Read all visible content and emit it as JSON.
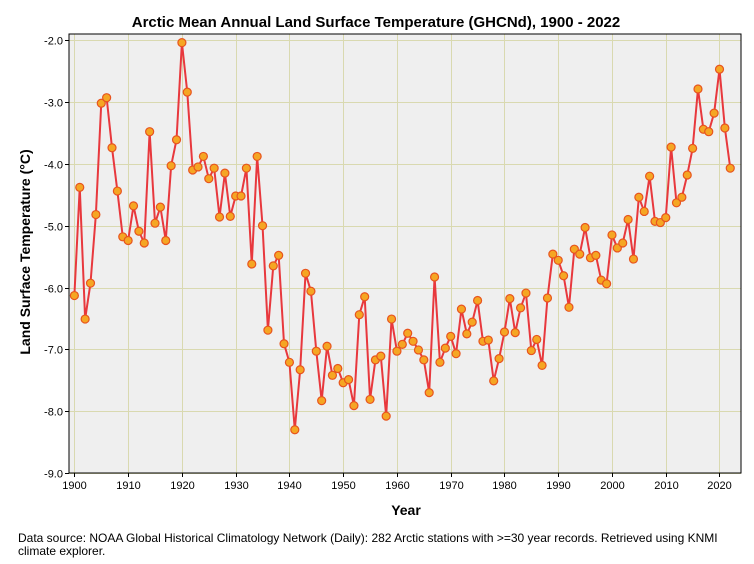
{
  "chart_data": {
    "type": "line",
    "title": "Arctic Mean Annual Land Surface Temperature (GHCNd), 1900 - 2022",
    "xlabel": "Year",
    "ylabel": "Land Surface Temperature (°C)",
    "xlim": [
      1899,
      2024
    ],
    "ylim": [
      -9.0,
      -1.9
    ],
    "xticks": [
      1900,
      1910,
      1920,
      1930,
      1940,
      1950,
      1960,
      1970,
      1980,
      1990,
      2000,
      2010,
      2020
    ],
    "xtick_labels": [
      "1900",
      "1910",
      "1920",
      "1930",
      "1940",
      "1950",
      "1960",
      "1970",
      "1980",
      "1990",
      "2000",
      "2010",
      "2020"
    ],
    "yticks": [
      -9.0,
      -8.0,
      -7.0,
      -6.0,
      -5.0,
      -4.0,
      -3.0,
      -2.0
    ],
    "ytick_labels": [
      "-9.0",
      "-8.0",
      "-7.0",
      "-6.0",
      "-5.0",
      "-4.0",
      "-3.0",
      "-2.0"
    ],
    "grid": true,
    "colors": {
      "line": "#e8383d",
      "marker_fill": "#f5a623",
      "marker_edge": "#e8541e",
      "plot_bg": "#efefef",
      "grid": "#d9d9b0"
    },
    "series": [
      {
        "name": "Arctic mean annual land surface temperature",
        "x": [
          1900,
          1901,
          1902,
          1903,
          1904,
          1905,
          1906,
          1907,
          1908,
          1909,
          1910,
          1911,
          1912,
          1913,
          1914,
          1915,
          1916,
          1917,
          1918,
          1919,
          1920,
          1921,
          1922,
          1923,
          1924,
          1925,
          1926,
          1927,
          1928,
          1929,
          1930,
          1931,
          1932,
          1933,
          1934,
          1935,
          1936,
          1937,
          1938,
          1939,
          1940,
          1941,
          1942,
          1943,
          1944,
          1945,
          1946,
          1947,
          1948,
          1949,
          1950,
          1951,
          1952,
          1953,
          1954,
          1955,
          1956,
          1957,
          1958,
          1959,
          1960,
          1961,
          1962,
          1963,
          1964,
          1965,
          1966,
          1967,
          1968,
          1969,
          1970,
          1971,
          1972,
          1973,
          1974,
          1975,
          1976,
          1977,
          1978,
          1979,
          1980,
          1981,
          1982,
          1983,
          1984,
          1985,
          1986,
          1987,
          1988,
          1989,
          1990,
          1991,
          1992,
          1993,
          1994,
          1995,
          1996,
          1997,
          1998,
          1999,
          2000,
          2001,
          2002,
          2003,
          2004,
          2005,
          2006,
          2007,
          2008,
          2009,
          2010,
          2011,
          2012,
          2013,
          2014,
          2015,
          2016,
          2017,
          2018,
          2019,
          2020,
          2021,
          2022
        ],
        "values": [
          -6.13,
          -4.38,
          -6.51,
          -5.93,
          -4.82,
          -3.02,
          -2.93,
          -3.74,
          -4.44,
          -5.18,
          -5.24,
          -4.68,
          -5.09,
          -5.28,
          -3.48,
          -4.96,
          -4.7,
          -5.24,
          -4.03,
          -3.61,
          -2.04,
          -2.84,
          -4.1,
          -4.05,
          -3.88,
          -4.24,
          -4.07,
          -4.86,
          -4.15,
          -4.85,
          -4.52,
          -4.52,
          -4.07,
          -5.62,
          -3.88,
          -5.0,
          -6.69,
          -5.65,
          -5.48,
          -6.91,
          -7.21,
          -8.3,
          -7.33,
          -5.77,
          -6.06,
          -7.03,
          -7.83,
          -6.95,
          -7.42,
          -7.31,
          -7.54,
          -7.49,
          -7.91,
          -6.44,
          -6.15,
          -7.81,
          -7.17,
          -7.11,
          -8.08,
          -6.51,
          -7.03,
          -6.92,
          -6.74,
          -6.87,
          -7.01,
          -7.17,
          -7.7,
          -5.83,
          -7.21,
          -6.98,
          -6.79,
          -7.07,
          -6.35,
          -6.75,
          -6.56,
          -6.21,
          -6.87,
          -6.85,
          -7.51,
          -7.15,
          -6.72,
          -6.18,
          -6.73,
          -6.33,
          -6.09,
          -7.02,
          -6.84,
          -7.26,
          -6.17,
          -5.46,
          -5.56,
          -5.81,
          -6.32,
          -5.38,
          -5.46,
          -5.03,
          -5.52,
          -5.48,
          -5.88,
          -5.94,
          -5.15,
          -5.36,
          -5.28,
          -4.9,
          -5.54,
          -4.54,
          -4.77,
          -4.2,
          -4.93,
          -4.95,
          -4.87,
          -3.73,
          -4.63,
          -4.54,
          -4.18,
          -3.75,
          -2.79,
          -3.44,
          -3.48,
          -3.18,
          -2.47,
          -3.42,
          -4.07
        ]
      }
    ]
  },
  "source_note": "Data source: NOAA Global Historical Climatology Network (Daily): 282 Arctic stations with >=30 year records. Retrieved using KNMI climate explorer."
}
